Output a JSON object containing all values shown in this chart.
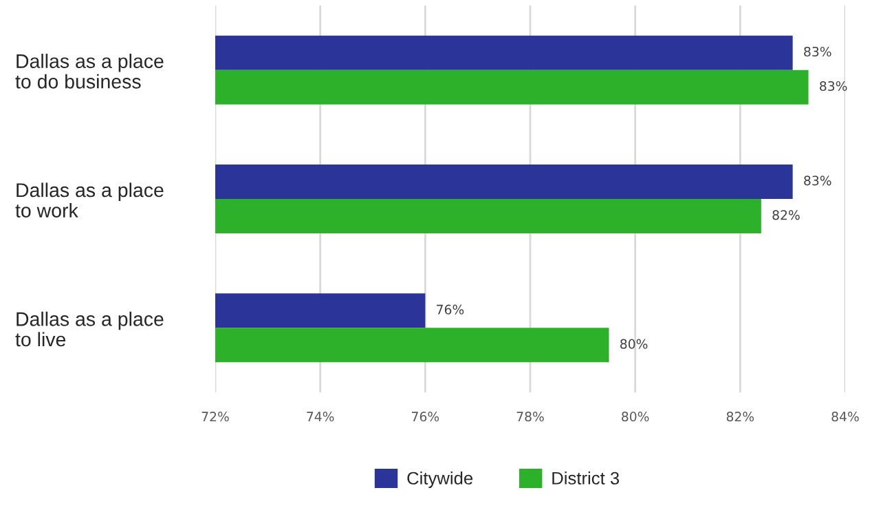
{
  "chart_data": {
    "type": "bar",
    "orientation": "horizontal",
    "categories": [
      "Dallas as a place\nto do business",
      "Dallas as a place\nto work",
      "Dallas as a place\nto live"
    ],
    "series": [
      {
        "name": "Citywide",
        "color": "#2b3499",
        "values": [
          83.0,
          83.0,
          76.0
        ],
        "value_labels": [
          "83%",
          "83%",
          "76%"
        ]
      },
      {
        "name": "District 3",
        "color": "#2eb12a",
        "values": [
          83.3,
          82.4,
          79.5
        ],
        "value_labels": [
          "83%",
          "82%",
          "80%"
        ]
      }
    ],
    "xlim": [
      72,
      84
    ],
    "xticks": [
      {
        "value": 72,
        "label": "72%"
      },
      {
        "value": 74,
        "label": "74%"
      },
      {
        "value": 76,
        "label": "76%"
      },
      {
        "value": 78,
        "label": "78%"
      },
      {
        "value": 80,
        "label": "80%"
      },
      {
        "value": 82,
        "label": "82%"
      },
      {
        "value": 84,
        "label": "84%"
      }
    ],
    "grid": "x",
    "legend": "bottom"
  }
}
